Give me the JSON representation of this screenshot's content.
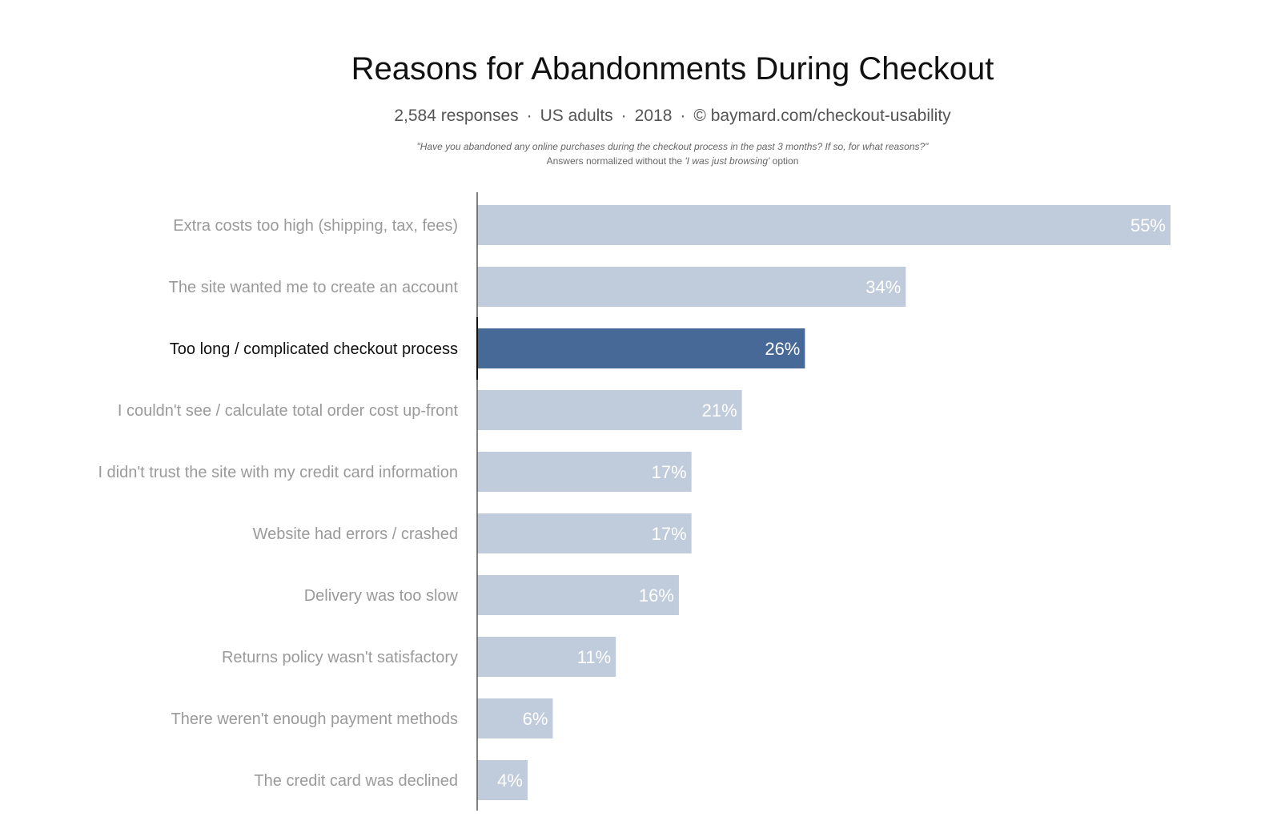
{
  "header": {
    "title": "Reasons for Abandonments During Checkout",
    "subtitle": {
      "responses": "2,584 responses",
      "population": "US adults",
      "year": "2018",
      "source": "© baymard.com/checkout-usability"
    },
    "question": "\"Have you abandoned any online purchases during the checkout process in the past 3 months? If so, for what reasons?\"",
    "note_prefix": "Answers normalized without the ",
    "note_option": "'I was just browsing'",
    "note_suffix": " option"
  },
  "chart_data": {
    "type": "bar",
    "orientation": "horizontal",
    "title": "Reasons for Abandonments During Checkout",
    "xlabel": "",
    "ylabel": "",
    "unit": "%",
    "xlim": [
      0,
      55
    ],
    "grid": false,
    "categories": [
      "Extra costs too high (shipping, tax, fees)",
      "The site wanted me to create an account",
      "Too long / complicated checkout process",
      "I couldn't see / calculate total order cost up-front",
      "I didn't trust the site with my credit card information",
      "Website had errors / crashed",
      "Delivery was too slow",
      "Returns policy wasn't satisfactory",
      "There weren't enough payment methods",
      "The credit card was declined"
    ],
    "values": [
      55,
      34,
      26,
      21,
      17,
      17,
      16,
      11,
      6,
      4
    ],
    "value_labels": [
      "55%",
      "34%",
      "26%",
      "21%",
      "17%",
      "17%",
      "16%",
      "11%",
      "6%",
      "4%"
    ],
    "highlight_index": 2,
    "colors": {
      "bar": "#c0cbdb",
      "highlight": "#476998",
      "axis": "#555555"
    }
  }
}
